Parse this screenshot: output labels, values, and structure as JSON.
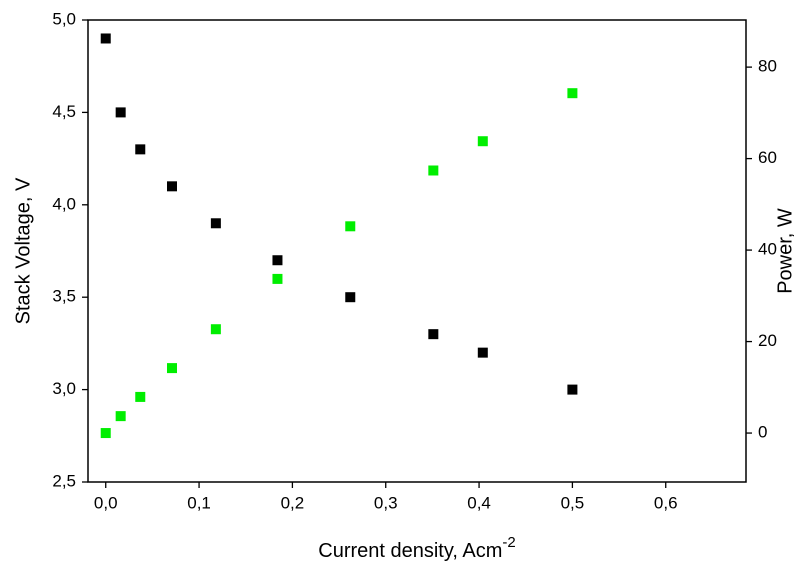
{
  "chart_data": {
    "type": "scatter",
    "xlabel": {
      "text": "Current density, Acm",
      "superscript": "-2"
    },
    "ylabel": "Stack Voltage, V",
    "y2label": "Power, W",
    "y2label_color": "#00ee00",
    "x": [
      0.0,
      0.016,
      0.037,
      0.071,
      0.118,
      0.184,
      0.262,
      0.351,
      0.404,
      0.5
    ],
    "series": [
      {
        "name": "Stack Voltage",
        "color": "#000000",
        "values": [
          4.9,
          4.5,
          4.3,
          4.1,
          3.9,
          3.7,
          3.5,
          3.3,
          3.2,
          3.0
        ]
      },
      {
        "name": "Power",
        "color": "#00ee00",
        "axis": "y2",
        "values": [
          0,
          3.7,
          7.9,
          14.2,
          22.7,
          33.7,
          45.2,
          57.4,
          63.8,
          74.3
        ]
      }
    ],
    "xlim": [
      -0.019,
      0.686
    ],
    "xticks": [
      {
        "value": 0,
        "label": "0,0"
      },
      {
        "value": 0.1,
        "label": "0,1"
      },
      {
        "value": 0.2,
        "label": "0,2"
      },
      {
        "value": 0.3,
        "label": "0,3"
      },
      {
        "value": 0.4,
        "label": "0,4"
      },
      {
        "value": 0.5,
        "label": "0,5"
      },
      {
        "value": 0.6,
        "label": "0,6"
      }
    ],
    "ylim": [
      2.5,
      5.0
    ],
    "yticks": [
      {
        "value": 2.5,
        "label": "2,5"
      },
      {
        "value": 3.0,
        "label": "3,0"
      },
      {
        "value": 3.5,
        "label": "3,5"
      },
      {
        "value": 4.0,
        "label": "4,0"
      },
      {
        "value": 4.5,
        "label": "4,5"
      },
      {
        "value": 5.0,
        "label": "5,0"
      }
    ],
    "y2lim": [
      -10.7,
      90.3
    ],
    "y2ticks": [
      0,
      20,
      40,
      60,
      80
    ]
  }
}
